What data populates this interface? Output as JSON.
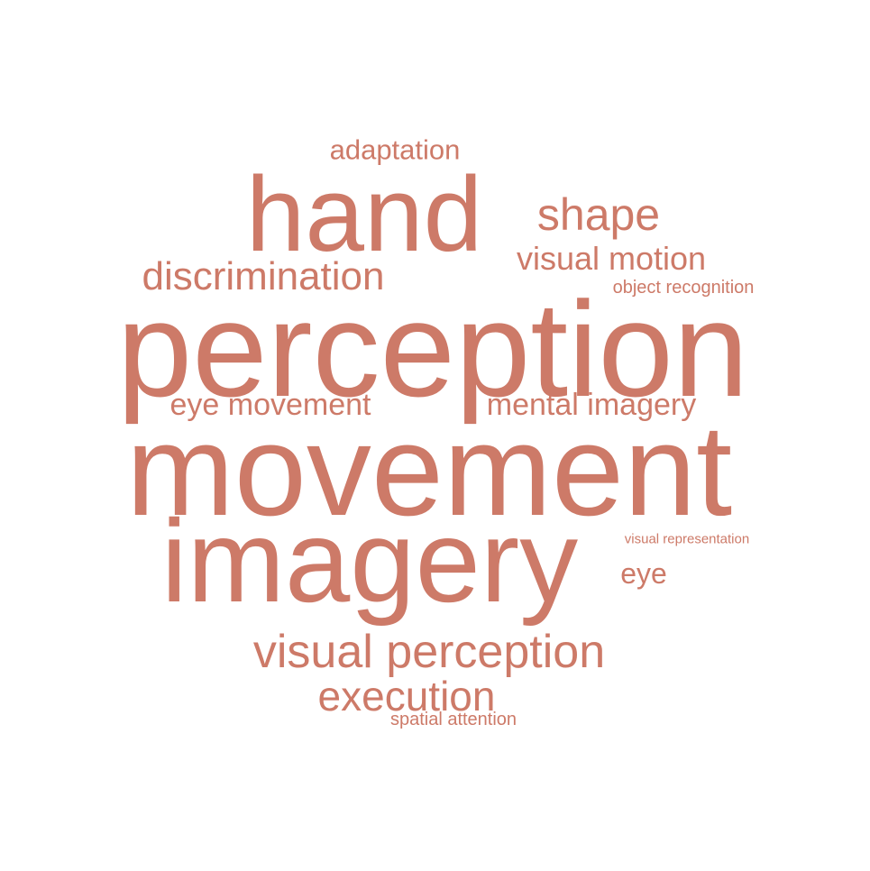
{
  "word_cloud": {
    "color": "#cd7a68",
    "words": [
      {
        "id": "perception",
        "text": "perception",
        "weight": 1.0
      },
      {
        "id": "movement",
        "text": "movement",
        "weight": 0.97
      },
      {
        "id": "imagery",
        "text": "imagery",
        "weight": 0.86
      },
      {
        "id": "hand",
        "text": "hand",
        "weight": 0.78
      },
      {
        "id": "visual-perception",
        "text": "visual perception",
        "weight": 0.36
      },
      {
        "id": "discrimination",
        "text": "discrimination",
        "weight": 0.32
      },
      {
        "id": "shape",
        "text": "shape",
        "weight": 0.34
      },
      {
        "id": "execution",
        "text": "execution",
        "weight": 0.3
      },
      {
        "id": "visual-motion",
        "text": "visual motion",
        "weight": 0.25
      },
      {
        "id": "eye-movement",
        "text": "eye movement",
        "weight": 0.24
      },
      {
        "id": "mental-imagery",
        "text": "mental imagery",
        "weight": 0.24
      },
      {
        "id": "adaptation",
        "text": "adaptation",
        "weight": 0.23
      },
      {
        "id": "eye",
        "text": "eye",
        "weight": 0.22
      },
      {
        "id": "object-recognition",
        "text": "object recognition",
        "weight": 0.15
      },
      {
        "id": "spatial-attention",
        "text": "spatial attention",
        "weight": 0.15
      },
      {
        "id": "visual-representation",
        "text": "visual representation",
        "weight": 0.12
      }
    ]
  }
}
